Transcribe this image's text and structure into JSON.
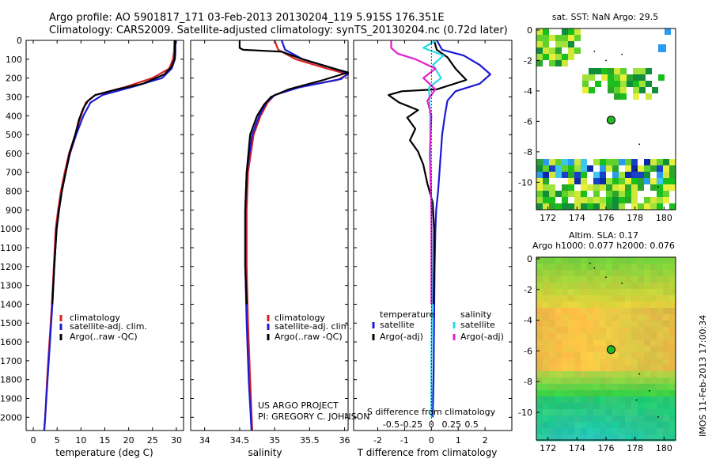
{
  "header": {
    "title_line1": "Argo profile: AO 5901817_171 03-Feb-2013 20130204_119 5.915S 176.351E",
    "title_line2": "Climatology: CARS2009. Satellite-adjusted climatology: synTS_20130204.nc (0.72d later)"
  },
  "colors": {
    "climatology": "#d62020",
    "satellite": "#1a1ad6",
    "argo": "#000000",
    "sat_salinity": "#2ad8e8",
    "argo_salinity_adj": "#e020d0"
  },
  "depth_axis": {
    "ticks": [
      0,
      100,
      200,
      300,
      400,
      500,
      600,
      700,
      800,
      900,
      1000,
      1100,
      1200,
      1300,
      1400,
      1500,
      1600,
      1700,
      1800,
      1900,
      2000
    ],
    "range": [
      0,
      2070
    ]
  },
  "credit": {
    "line1": "US ARGO PROJECT",
    "line2": "PI: GREGORY C. JOHNSON"
  },
  "chart_data": [
    {
      "id": "temperature",
      "type": "line",
      "xlabel": "temperature (deg C)",
      "xlim": [
        -1.5,
        31.5
      ],
      "xticks": [
        0,
        5,
        10,
        15,
        20,
        25,
        30
      ],
      "legend": [
        "climatology",
        "satellite-adj. clim.",
        "Argo(..raw -QC)"
      ],
      "series": [
        {
          "name": "climatology",
          "color_key": "climatology",
          "points": [
            [
              29.6,
              0
            ],
            [
              29.5,
              60
            ],
            [
              29.3,
              100
            ],
            [
              28.5,
              150
            ],
            [
              25,
              200
            ],
            [
              19,
              250
            ],
            [
              13,
              290
            ],
            [
              11,
              330
            ],
            [
              10,
              400
            ],
            [
              8.8,
              500
            ],
            [
              7.5,
              600
            ],
            [
              6.6,
              700
            ],
            [
              5.8,
              800
            ],
            [
              5.2,
              900
            ],
            [
              4.7,
              1000
            ],
            [
              4.3,
              1200
            ],
            [
              3.9,
              1400
            ],
            [
              3.4,
              1600
            ],
            [
              2.9,
              1800
            ],
            [
              2.5,
              2000
            ],
            [
              2.3,
              2070
            ]
          ]
        },
        {
          "name": "satellite-adj. clim.",
          "color_key": "satellite",
          "points": [
            [
              29.8,
              0
            ],
            [
              29.8,
              60
            ],
            [
              29.7,
              100
            ],
            [
              29.0,
              150
            ],
            [
              27,
              200
            ],
            [
              21,
              245
            ],
            [
              14.5,
              290
            ],
            [
              12,
              330
            ],
            [
              10.5,
              400
            ],
            [
              9,
              500
            ],
            [
              7.7,
              600
            ],
            [
              6.8,
              700
            ],
            [
              6.0,
              800
            ],
            [
              5.4,
              900
            ],
            [
              4.9,
              1000
            ],
            [
              4.4,
              1200
            ],
            [
              4.0,
              1400
            ],
            [
              3.5,
              1600
            ],
            [
              3.0,
              1800
            ],
            [
              2.5,
              2000
            ],
            [
              2.3,
              2070
            ]
          ]
        },
        {
          "name": "Argo(..raw -QC)",
          "color_key": "argo",
          "points": [
            [
              29.7,
              0
            ],
            [
              29.7,
              60
            ],
            [
              29.6,
              100
            ],
            [
              29.0,
              140
            ],
            [
              27.5,
              180
            ],
            [
              23,
              230
            ],
            [
              17.5,
              260
            ],
            [
              13,
              290
            ],
            [
              11.5,
              320
            ],
            [
              10.5,
              360
            ],
            [
              9.6,
              420
            ],
            [
              8.8,
              500
            ],
            [
              7.6,
              600
            ],
            [
              6.8,
              700
            ],
            [
              6.0,
              800
            ],
            [
              5.4,
              900
            ],
            [
              4.9,
              1000
            ],
            [
              4.4,
              1200
            ],
            [
              4.0,
              1400
            ]
          ]
        }
      ]
    },
    {
      "id": "salinity",
      "type": "line",
      "xlabel": "salinity",
      "xlim": [
        33.8,
        36.05
      ],
      "xticks": [
        34,
        34.5,
        35,
        35.5,
        36
      ],
      "xticklabels": [
        "34",
        "34.5",
        "35",
        "35.5",
        "36"
      ],
      "legend": [
        "climatology",
        "satellite-adj. clim.",
        "Argo(..raw -QC)"
      ],
      "series": [
        {
          "name": "climatology",
          "color_key": "climatology",
          "points": [
            [
              35.0,
              0
            ],
            [
              35.05,
              50
            ],
            [
              35.3,
              100
            ],
            [
              35.75,
              150
            ],
            [
              36.05,
              180
            ],
            [
              35.9,
              210
            ],
            [
              35.3,
              250
            ],
            [
              35.0,
              290
            ],
            [
              34.9,
              330
            ],
            [
              34.8,
              400
            ],
            [
              34.7,
              500
            ],
            [
              34.62,
              700
            ],
            [
              34.6,
              900
            ],
            [
              34.6,
              1200
            ],
            [
              34.62,
              1500
            ],
            [
              34.65,
              1800
            ],
            [
              34.68,
              2070
            ]
          ]
        },
        {
          "name": "satellite-adj. clim.",
          "color_key": "satellite",
          "points": [
            [
              35.1,
              0
            ],
            [
              35.15,
              50
            ],
            [
              35.4,
              100
            ],
            [
              35.85,
              150
            ],
            [
              36.05,
              175
            ],
            [
              35.95,
              205
            ],
            [
              35.35,
              250
            ],
            [
              35.0,
              290
            ],
            [
              34.88,
              330
            ],
            [
              34.78,
              400
            ],
            [
              34.68,
              500
            ],
            [
              34.6,
              700
            ],
            [
              34.58,
              900
            ],
            [
              34.58,
              1200
            ],
            [
              34.6,
              1500
            ],
            [
              34.63,
              1800
            ],
            [
              34.67,
              2070
            ]
          ]
        },
        {
          "name": "Argo(..raw -QC)",
          "color_key": "argo",
          "points": [
            [
              34.5,
              0
            ],
            [
              34.5,
              40
            ],
            [
              34.55,
              50
            ],
            [
              35.1,
              60
            ],
            [
              35.4,
              100
            ],
            [
              35.85,
              150
            ],
            [
              36.05,
              170
            ],
            [
              35.7,
              210
            ],
            [
              35.2,
              260
            ],
            [
              34.95,
              300
            ],
            [
              34.85,
              340
            ],
            [
              34.75,
              400
            ],
            [
              34.65,
              500
            ],
            [
              34.6,
              700
            ],
            [
              34.58,
              900
            ],
            [
              34.58,
              1200
            ],
            [
              34.6,
              1400
            ]
          ]
        }
      ]
    },
    {
      "id": "difference",
      "type": "line",
      "xlabel_bottom": "T difference from climatology",
      "xlabel_top": "S difference from climatology",
      "xlim": [
        -2.9,
        3.0
      ],
      "xticks": [
        -2,
        -1,
        0,
        1,
        2
      ],
      "s_ticks": [
        -0.5,
        -0.25,
        0,
        0.25,
        0.5
      ],
      "s_ticklabels": [
        "-0.5",
        "-0.25",
        "0",
        "0.25",
        "0.5"
      ],
      "s_scale": 3,
      "legend_temperature": {
        "header": "temperature",
        "items": [
          "satellite",
          "Argo(-adj)"
        ]
      },
      "legend_salinity": {
        "header": "salinity",
        "items": [
          "satellite",
          "Argo(-adj)"
        ]
      },
      "series": [
        {
          "name": "T satellite",
          "color_key": "satellite",
          "points": [
            [
              0.2,
              0
            ],
            [
              0.4,
              50
            ],
            [
              1.2,
              80
            ],
            [
              1.8,
              130
            ],
            [
              2.2,
              180
            ],
            [
              1.8,
              230
            ],
            [
              0.9,
              270
            ],
            [
              0.6,
              320
            ],
            [
              0.5,
              400
            ],
            [
              0.4,
              500
            ],
            [
              0.35,
              600
            ],
            [
              0.3,
              700
            ],
            [
              0.25,
              800
            ],
            [
              0.18,
              900
            ],
            [
              0.15,
              1000
            ],
            [
              0.12,
              1200
            ],
            [
              0.1,
              1500
            ],
            [
              0.08,
              1800
            ],
            [
              0.05,
              2000
            ]
          ]
        },
        {
          "name": "T Argo(-adj)",
          "color_key": "argo",
          "points": [
            [
              0.1,
              0
            ],
            [
              0.2,
              50
            ],
            [
              0.6,
              90
            ],
            [
              0.9,
              150
            ],
            [
              1.3,
              210
            ],
            [
              0.2,
              260
            ],
            [
              -1.1,
              270
            ],
            [
              -1.6,
              290
            ],
            [
              -1.2,
              330
            ],
            [
              -0.5,
              370
            ],
            [
              -0.9,
              410
            ],
            [
              -0.6,
              470
            ],
            [
              -0.8,
              530
            ],
            [
              -0.5,
              590
            ],
            [
              -0.3,
              660
            ],
            [
              -0.15,
              760
            ],
            [
              0.05,
              860
            ],
            [
              0.1,
              1000
            ],
            [
              0.1,
              1200
            ],
            [
              0.08,
              1400
            ]
          ]
        },
        {
          "name": "S satellite",
          "color_key": "sat_salinity",
          "points": [
            [
              0.06,
              0
            ],
            [
              -0.1,
              40
            ],
            [
              0.15,
              80
            ],
            [
              0.02,
              130
            ],
            [
              0.12,
              200
            ],
            [
              -0.03,
              250
            ],
            [
              -0.02,
              350
            ],
            [
              -0.01,
              600
            ],
            [
              0.0,
              900
            ],
            [
              0.01,
              1300
            ],
            [
              0.0,
              1700
            ],
            [
              0.0,
              2000
            ]
          ]
        },
        {
          "name": "S Argo(-adj)",
          "color_key": "argo_salinity_adj",
          "points": [
            [
              -0.5,
              0
            ],
            [
              -0.5,
              40
            ],
            [
              -0.42,
              70
            ],
            [
              -0.2,
              100
            ],
            [
              0.05,
              150
            ],
            [
              -0.1,
              200
            ],
            [
              0.05,
              260
            ],
            [
              -0.05,
              320
            ],
            [
              0.0,
              400
            ],
            [
              -0.02,
              600
            ],
            [
              0.0,
              900
            ],
            [
              0.0,
              1400
            ]
          ]
        }
      ]
    },
    {
      "id": "sst-map",
      "type": "heatmap",
      "title": "sat. SST: NaN Argo: 29.5",
      "xlim": [
        171.2,
        180.8
      ],
      "ylim": [
        -11.8,
        0.1
      ],
      "xticks": [
        172,
        174,
        176,
        178,
        180
      ],
      "yticks": [
        0,
        -2,
        -4,
        -6,
        -8,
        -10
      ],
      "argo_position": {
        "lon": 176.351,
        "lat": -5.915
      }
    },
    {
      "id": "sla-map",
      "type": "heatmap",
      "title_line1": "Altim. SLA: 0.17",
      "title_line2": "Argo h1000: 0.077 h2000: 0.076",
      "xlim": [
        171.2,
        180.8
      ],
      "ylim": [
        -11.8,
        0.1
      ],
      "xticks": [
        172,
        174,
        176,
        178,
        180
      ],
      "yticks": [
        0,
        -2,
        -4,
        -6,
        -8,
        -10
      ],
      "argo_position": {
        "lon": 176.351,
        "lat": -5.915
      },
      "side_label": "IMOS 11-Feb-2013 17:00:34"
    }
  ]
}
